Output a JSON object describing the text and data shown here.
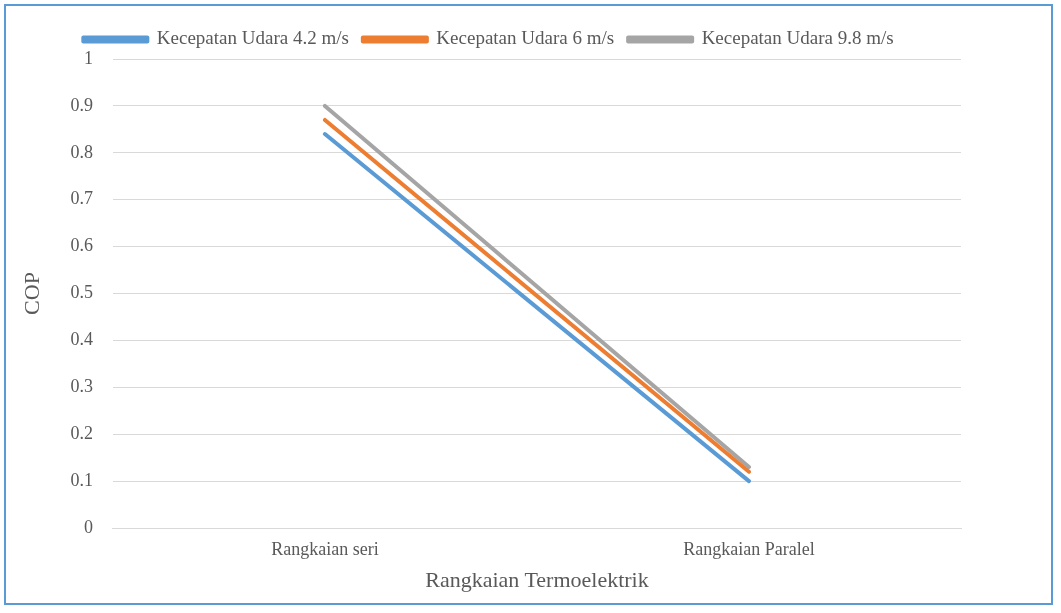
{
  "chart_data": {
    "type": "line",
    "xlabel": "Rangkaian Termoelektrik",
    "ylabel": "COP",
    "categories": [
      "Rangkaian seri",
      "Rangkaian Paralel"
    ],
    "series": [
      {
        "name": "Kecepatan Udara 4.2 m/s",
        "color": "#5b9bd5",
        "values": [
          0.84,
          0.1
        ]
      },
      {
        "name": "Kecepatan Udara 6 m/s",
        "color": "#ed7d31",
        "values": [
          0.87,
          0.12
        ]
      },
      {
        "name": "Kecepatan Udara 9.8 m/s",
        "color": "#a5a5a5",
        "values": [
          0.9,
          0.13
        ]
      }
    ],
    "ylim": [
      0,
      1
    ],
    "yticks": [
      0,
      0.1,
      0.2,
      0.3,
      0.4,
      0.5,
      0.6,
      0.7,
      0.8,
      0.9,
      1
    ],
    "grid": "y",
    "legend": "top",
    "marker": "none",
    "line_style": "solid"
  }
}
